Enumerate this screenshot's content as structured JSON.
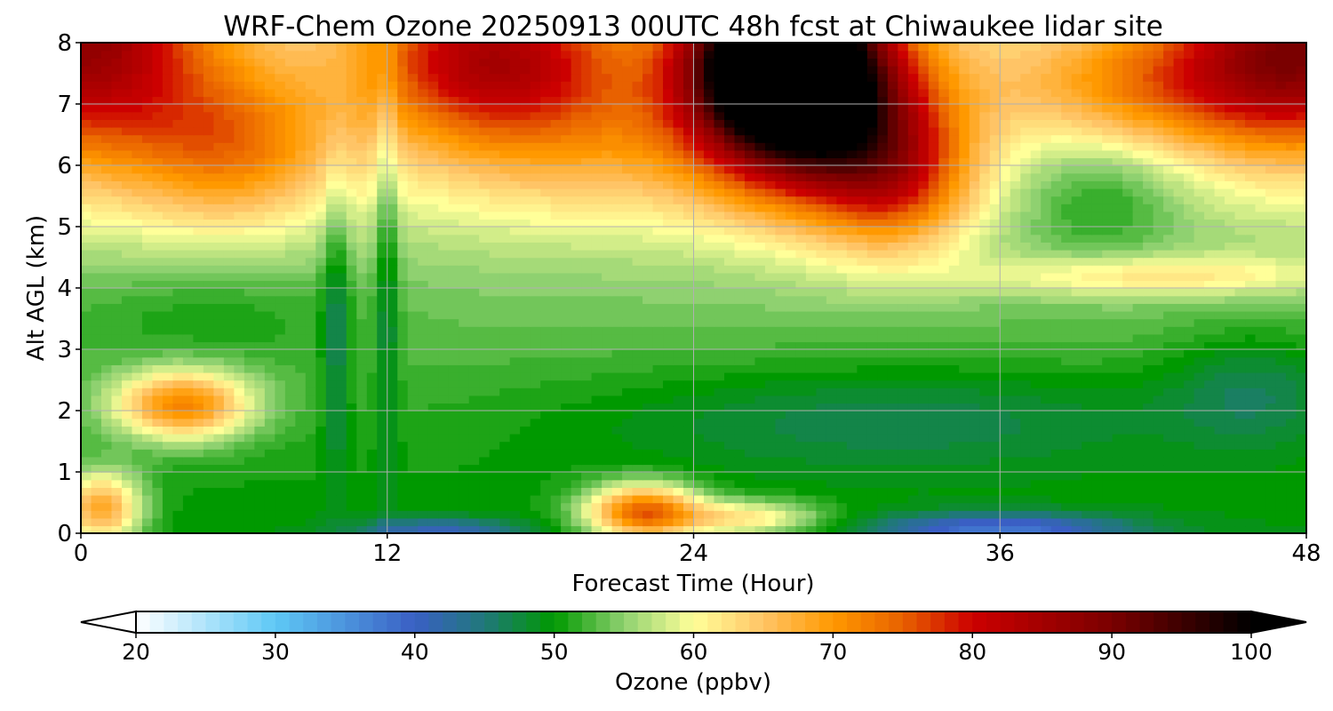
{
  "chart_data": {
    "type": "heatmap",
    "title": "WRF-Chem Ozone  20250913 00UTC 48h fcst at Chiwaukee lidar site",
    "xlabel": "Forecast Time (Hour)",
    "ylabel": "Alt AGL (km)",
    "xlim": [
      0,
      48
    ],
    "ylim": [
      0,
      8
    ],
    "xticks": [
      0,
      12,
      24,
      36,
      48
    ],
    "yticks": [
      0,
      1,
      2,
      3,
      4,
      5,
      6,
      7,
      8
    ],
    "grid": true,
    "colorbar": {
      "label": "Ozone  (ppbv)",
      "range": [
        20,
        100
      ],
      "ticks": [
        20,
        30,
        40,
        50,
        60,
        70,
        80,
        90,
        100
      ],
      "extend": "both",
      "step": 1,
      "anchors": [
        {
          "value": 20,
          "color": "#ffffff"
        },
        {
          "value": 30,
          "color": "#5ec8f5"
        },
        {
          "value": 40,
          "color": "#3a5fc4"
        },
        {
          "value": 45,
          "color": "#20787a"
        },
        {
          "value": 50,
          "color": "#009900"
        },
        {
          "value": 55,
          "color": "#8fd170"
        },
        {
          "value": 60,
          "color": "#ffff99"
        },
        {
          "value": 65,
          "color": "#ffc466"
        },
        {
          "value": 70,
          "color": "#ff9900"
        },
        {
          "value": 75,
          "color": "#e86100"
        },
        {
          "value": 80,
          "color": "#cc0000"
        },
        {
          "value": 90,
          "color": "#7a0000"
        },
        {
          "value": 100,
          "color": "#000000"
        }
      ]
    },
    "field": {
      "base_ppbv": 50,
      "background_gradient_per_km": 1.2,
      "features": [
        {
          "name": "upper-left high",
          "x": 0,
          "y": 8,
          "amp": 28,
          "sx": 5,
          "sy": 2
        },
        {
          "name": "upper-left shoulder",
          "x": 6,
          "y": 6.3,
          "amp": 14,
          "sx": 4,
          "sy": 1.3
        },
        {
          "name": "upper middle",
          "x": 16,
          "y": 7.8,
          "amp": 22,
          "sx": 5,
          "sy": 1.3
        },
        {
          "name": "upper middle ridge",
          "x": 20,
          "y": 6.5,
          "amp": 10,
          "sx": 8,
          "sy": 1.5
        },
        {
          "name": "black core aloft",
          "x": 27.5,
          "y": 7.8,
          "amp": 55,
          "sx": 3.5,
          "sy": 1.4
        },
        {
          "name": "dark red aloft",
          "x": 29,
          "y": 6.8,
          "amp": 26,
          "sx": 4.5,
          "sy": 1.6
        },
        {
          "name": "orange descending lobe",
          "x": 32,
          "y": 5.8,
          "amp": 16,
          "sx": 3,
          "sy": 1.2
        },
        {
          "name": "upper right high",
          "x": 48,
          "y": 8,
          "amp": 28,
          "sx": 5,
          "sy": 1.8
        },
        {
          "name": "upper right band",
          "x": 42,
          "y": 7.3,
          "amp": 12,
          "sx": 6,
          "sy": 1
        },
        {
          "name": "mid-right tongue",
          "x": 42,
          "y": 4.2,
          "amp": 8,
          "sx": 7,
          "sy": 0.35
        },
        {
          "name": "right green pocket",
          "x": 40,
          "y": 5.5,
          "amp": -5,
          "sx": 3,
          "sy": 1
        },
        {
          "name": "left low-level lobe",
          "x": 4,
          "y": 2.1,
          "amp": 20,
          "sx": 2.6,
          "sy": 0.55
        },
        {
          "name": "left surface spot",
          "x": 0.8,
          "y": 0.4,
          "amp": 18,
          "sx": 1.6,
          "sy": 0.6
        },
        {
          "name": "surface afternoon plume",
          "x": 22,
          "y": 0.35,
          "amp": 24,
          "sx": 2.2,
          "sy": 0.45
        },
        {
          "name": "surface plume tail",
          "x": 26,
          "y": 0.25,
          "amp": 12,
          "sx": 3,
          "sy": 0.3
        },
        {
          "name": "left mid green",
          "x": 5,
          "y": 3.6,
          "amp": -3,
          "sx": 6,
          "sy": 0.8
        },
        {
          "name": "surface blue right",
          "x": 36,
          "y": 0.08,
          "amp": -12,
          "sx": 5,
          "sy": 0.25
        },
        {
          "name": "surface blue center",
          "x": 14,
          "y": 0.05,
          "amp": -9,
          "sx": 3,
          "sy": 0.2
        },
        {
          "name": "teal band",
          "x": 32,
          "y": 1.9,
          "amp": -5,
          "sx": 12,
          "sy": 0.9
        },
        {
          "name": "teal right",
          "x": 46,
          "y": 2.4,
          "amp": -5,
          "sx": 3.5,
          "sy": 1
        },
        {
          "name": "spike one",
          "x": 10,
          "y": 3.5,
          "amp": -6,
          "sx": 0.55,
          "sy": 2.5
        },
        {
          "name": "spike two",
          "x": 12,
          "y": 4.5,
          "amp": -6,
          "sx": 0.45,
          "sy": 3.5
        }
      ]
    }
  }
}
